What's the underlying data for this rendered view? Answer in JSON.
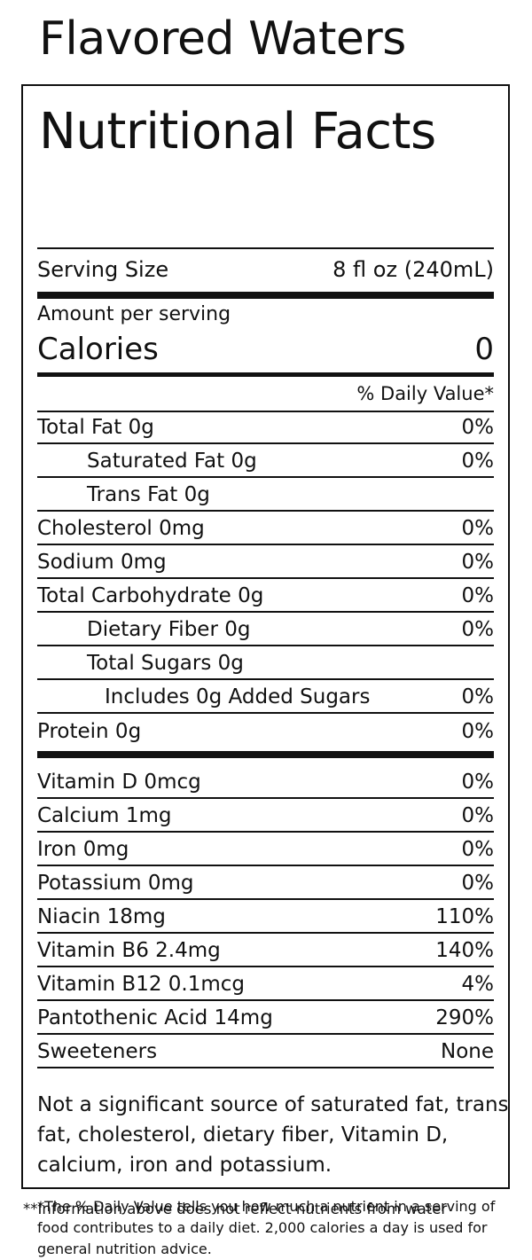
{
  "product_title": "Flavored Waters",
  "facts_title": "Nutritional Facts",
  "serving": {
    "label": "Serving Size",
    "value": "8 fl oz (240mL)"
  },
  "amount_label": "Amount per serving",
  "calories": {
    "label": "Calories",
    "value": "0"
  },
  "dv_header": "% Daily Value*",
  "nutrients": [
    {
      "label": "Total Fat 0g",
      "dv": "0%"
    },
    {
      "label": "Saturated Fat 0g",
      "dv": "0%"
    },
    {
      "label": "Trans Fat 0g",
      "dv": ""
    },
    {
      "label": "Cholesterol 0mg",
      "dv": "0%"
    },
    {
      "label": "Sodium 0mg",
      "dv": "0%"
    },
    {
      "label": "Total Carbohydrate 0g",
      "dv": "0%"
    },
    {
      "label": "Dietary Fiber 0g",
      "dv": "0%"
    },
    {
      "label": "Total Sugars 0g",
      "dv": ""
    },
    {
      "label": "Includes 0g Added Sugars",
      "dv": "0%"
    },
    {
      "label": "Protein 0g",
      "dv": "0%"
    }
  ],
  "vitamins": [
    {
      "label": "Vitamin D 0mcg",
      "dv": "0%"
    },
    {
      "label": "Calcium 1mg",
      "dv": "0%"
    },
    {
      "label": "Iron 0mg",
      "dv": "0%"
    },
    {
      "label": "Potassium 0mg",
      "dv": "0%"
    },
    {
      "label": "Niacin 18mg",
      "dv": "110%"
    },
    {
      "label": "Vitamin B6 2.4mg",
      "dv": "140%"
    },
    {
      "label": "Vitamin B12 0.1mcg",
      "dv": "4%"
    },
    {
      "label": "Pantothenic Acid 14mg",
      "dv": "290%"
    },
    {
      "label": "Sweeteners",
      "dv": "None"
    }
  ],
  "statement": "Not a significant source of saturated fat, trans fat, cholesterol, dietary fiber, Vitamin D, calcium, iron and potassium.",
  "footnote": "*The % Daily Value tells you how much a nutrient in a serving of food contributes to a daily diet. 2,000 calories a day is used for general nutrition advice.",
  "bottom_note": "**Information above does not reflect nutrients from water"
}
